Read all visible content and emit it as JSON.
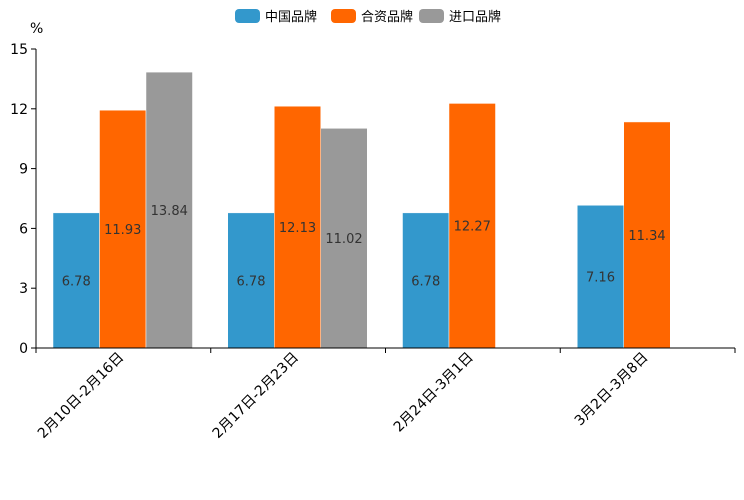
{
  "chart_data": {
    "type": "bar",
    "unit_label": "%",
    "categories": [
      "2月10日-2月16日",
      "2月17日-2月23日",
      "2月24日-3月1日",
      "3月2日-3月8日"
    ],
    "series": [
      {
        "name": "中国品牌",
        "color": "#3398CC",
        "values": [
          6.78,
          6.78,
          6.78,
          7.16
        ]
      },
      {
        "name": "合资品牌",
        "color": "#FF6600",
        "values": [
          11.93,
          12.13,
          12.27,
          11.34
        ]
      },
      {
        "name": "进口品牌",
        "color": "#999999",
        "values": [
          13.84,
          11.02,
          null,
          null
        ]
      }
    ],
    "ylim": [
      0,
      15
    ],
    "yticks": [
      0,
      3,
      6,
      9,
      12,
      15
    ],
    "legend_position": "top-center",
    "grid": false,
    "data_labels": true
  }
}
